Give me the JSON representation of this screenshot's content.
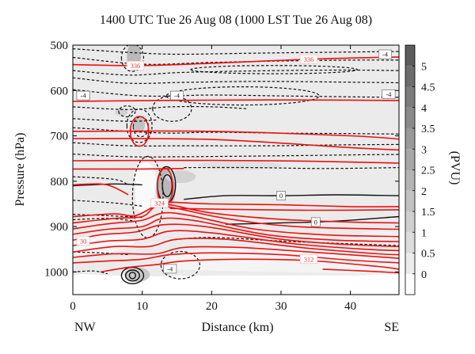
{
  "chart_data": {
    "type": "contour",
    "title": "1400 UTC Tue 26 Aug 08 (1000 LST Tue 26 Aug 08)",
    "xlabel": "Distance (km)",
    "ylabel": "Pressure (hPa)",
    "xlim": [
      0,
      47
    ],
    "ylim": [
      1050,
      500
    ],
    "y_scale": "reversed",
    "x_ticks": [
      0,
      10,
      20,
      30,
      40
    ],
    "y_ticks": [
      500,
      600,
      700,
      800,
      900,
      1000
    ],
    "x_endpoints": {
      "left": "NW",
      "right": "SE"
    },
    "colorbar": {
      "label": "(PVU)",
      "ticks": [
        "0",
        "0.5",
        "1",
        "1.5",
        "2",
        "2.5",
        "3",
        "3.5",
        "4",
        "4.5",
        "5"
      ],
      "values": [
        0,
        0.5,
        1,
        1.5,
        2,
        2.5,
        3,
        3.5,
        4,
        4.5,
        5
      ],
      "range": [
        -0.5,
        5.5
      ],
      "colors": [
        "#ffffff",
        "#ebebeb",
        "#dcdcdc",
        "#cfcfcf",
        "#c2c2c2",
        "#b4b4b4",
        "#a7a7a7",
        "#999999",
        "#8a8a8a",
        "#7b7b7b",
        "#6c6c6c",
        "#5c5c5c"
      ]
    },
    "contour_labels": [
      {
        "x": 9,
        "y": 545,
        "text": "336",
        "color": "red"
      },
      {
        "x": 34,
        "y": 531,
        "text": "336",
        "color": "red"
      },
      {
        "x": 45,
        "y": 520,
        "text": "-4",
        "color": "black"
      },
      {
        "x": 1.5,
        "y": 611,
        "text": "-4",
        "color": "black"
      },
      {
        "x": 15,
        "y": 611,
        "text": "-4",
        "color": "black"
      },
      {
        "x": 45.5,
        "y": 608,
        "text": "-4",
        "color": "black"
      },
      {
        "x": 30,
        "y": 832,
        "text": "0",
        "color": "black"
      },
      {
        "x": 35,
        "y": 890,
        "text": "0",
        "color": "black"
      },
      {
        "x": 1.5,
        "y": 932,
        "text": "30",
        "color": "red"
      },
      {
        "x": 12.5,
        "y": 848,
        "text": "324",
        "color": "red"
      },
      {
        "x": 14,
        "y": 993,
        "text": "-4",
        "color": "black"
      },
      {
        "x": 34,
        "y": 972,
        "text": "312",
        "color": "red"
      }
    ],
    "colors": {
      "theta": "#ee1111",
      "omega_negative": "#111111",
      "omega_zero": "#111111"
    }
  }
}
